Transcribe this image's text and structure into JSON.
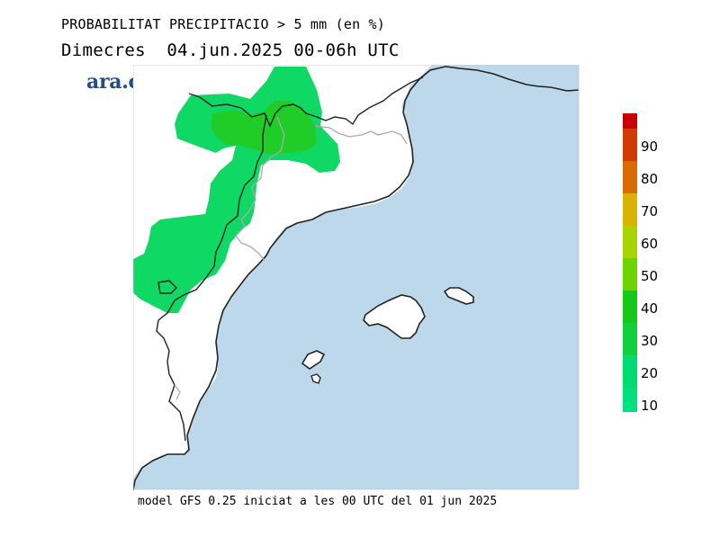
{
  "header": {
    "title": "PROBABILITAT PRECIPITACIO > 5 mm (en %)",
    "subtitle": "Dimecres  04.jun.2025 00-06h UTC"
  },
  "logo": {
    "text": "ara.cat",
    "color": "#1f4e8c"
  },
  "footer": {
    "text": "model GFS 0.25 iniciat a les 00 UTC del 01 jun 2025"
  },
  "map": {
    "region": "Catalonia / Balearic Islands",
    "sea_color": "#bcd8ea",
    "land_color": "#ffffff",
    "coast_color": "#222222",
    "border_color": "#999999"
  },
  "legend": {
    "labels": [
      "90",
      "80",
      "70",
      "60",
      "50",
      "40",
      "30",
      "20",
      "10"
    ],
    "colors": [
      "#c80000",
      "#d03c00",
      "#d86c00",
      "#d8b400",
      "#a8d400",
      "#6cd400",
      "#18c818",
      "#10d040",
      "#00dc70",
      "#00e07c"
    ]
  }
}
